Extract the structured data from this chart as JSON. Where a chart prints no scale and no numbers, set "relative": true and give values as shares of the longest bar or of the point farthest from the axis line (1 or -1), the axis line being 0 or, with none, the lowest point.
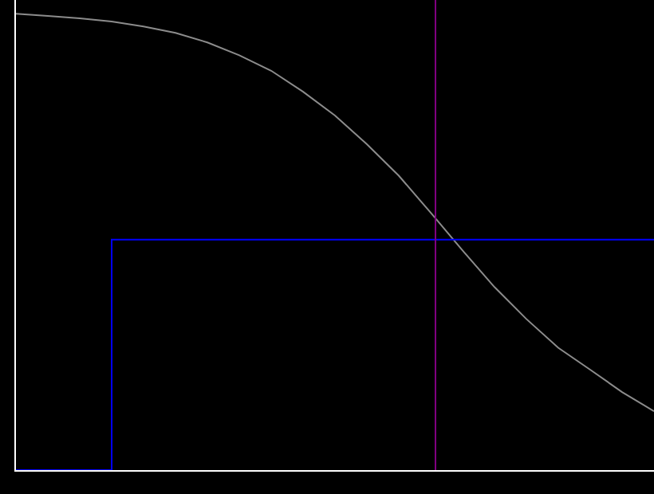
{
  "chart_data": {
    "type": "line",
    "relative": true,
    "categories": [
      null,
      null,
      null,
      null,
      null,
      null,
      null,
      null,
      null,
      null,
      null,
      null,
      null,
      null,
      null,
      null,
      null,
      null,
      null,
      null,
      null
    ],
    "series": [
      {
        "type": "line",
        "color": "#8c8c8c",
        "values": [
          1.0,
          0.995,
          0.99,
          0.983,
          0.972,
          0.958,
          0.937,
          0.909,
          0.875,
          0.829,
          0.777,
          0.714,
          0.645,
          0.564,
          0.481,
          0.401,
          0.331,
          0.268,
          0.22,
          0.171,
          0.129
        ]
      },
      {
        "type": "step",
        "color": "#0000ff",
        "values": [
          0,
          0,
          0,
          0.505,
          0.505,
          0.505,
          0.505,
          0.505,
          0.505,
          0.505,
          0.505,
          0.505,
          0.505,
          0.505,
          0.505,
          0.505,
          0.505,
          0.505,
          0.505,
          0.505,
          0.505
        ]
      }
    ],
    "grid": false
  }
}
